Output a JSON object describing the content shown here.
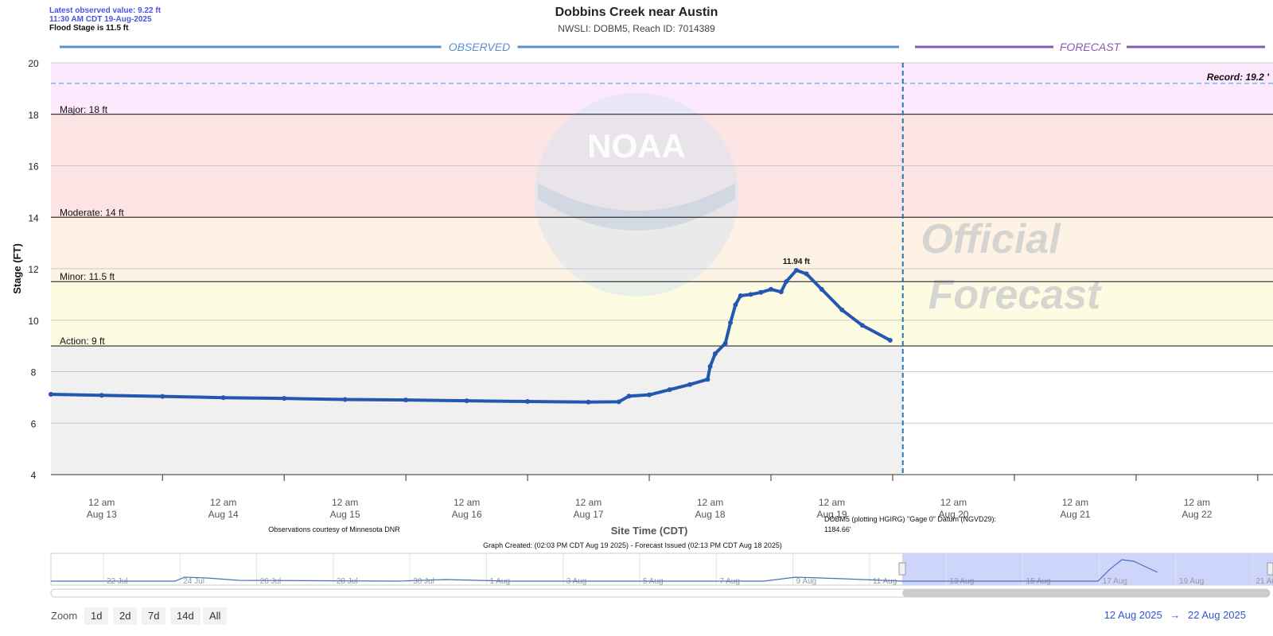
{
  "info": {
    "latest_value": "Latest observed value: 9.22 ft",
    "latest_time": "11:30 AM CDT 19-Aug-2025",
    "flood_stage": "Flood Stage is 11.5 ft"
  },
  "chart_data": {
    "type": "line",
    "title": "Dobbins Creek near Austin",
    "subtitle": "NWSLI: DOBM5, Reach ID: 7014389",
    "ylabel": "Stage (FT)",
    "xlabel": "Site Time (CDT)",
    "ylim": [
      4,
      20
    ],
    "yticks": [
      "4",
      "6",
      "8",
      "10",
      "12",
      "14",
      "16",
      "18",
      "20"
    ],
    "xlim": [
      "2025-08-12T14:00",
      "2025-08-22T15:00"
    ],
    "xticks": [
      {
        "t": "2025-08-13T00:00",
        "line1": "12 am",
        "line2": "Aug 13"
      },
      {
        "t": "2025-08-14T00:00",
        "line1": "12 am",
        "line2": "Aug 14"
      },
      {
        "t": "2025-08-15T00:00",
        "line1": "12 am",
        "line2": "Aug 15"
      },
      {
        "t": "2025-08-16T00:00",
        "line1": "12 am",
        "line2": "Aug 16"
      },
      {
        "t": "2025-08-17T00:00",
        "line1": "12 am",
        "line2": "Aug 17"
      },
      {
        "t": "2025-08-18T00:00",
        "line1": "12 am",
        "line2": "Aug 18"
      },
      {
        "t": "2025-08-19T00:00",
        "line1": "12 am",
        "line2": "Aug 19"
      },
      {
        "t": "2025-08-20T00:00",
        "line1": "12 am",
        "line2": "Aug 20"
      },
      {
        "t": "2025-08-21T00:00",
        "line1": "12 am",
        "line2": "Aug 21"
      },
      {
        "t": "2025-08-22T00:00",
        "line1": "12 am",
        "line2": "Aug 22"
      }
    ],
    "sections": {
      "observed": "OBSERVED",
      "forecast": "FORECAST",
      "forecast_start": "2025-08-19T14:00"
    },
    "watermark": {
      "line1": "Official",
      "line2": "Forecast",
      "noaa": "NOAA"
    },
    "thresholds": [
      {
        "name": "Major: 18 ft",
        "value": 18,
        "color": "#fde8fd"
      },
      {
        "name": "Moderate: 14 ft",
        "value": 14,
        "color": "#fde4e4"
      },
      {
        "name": "Minor: 11.5 ft",
        "value": 11.5,
        "color": "#fdf2e3"
      },
      {
        "name": "Action: 9 ft",
        "value": 9,
        "color": "#fdfce3"
      }
    ],
    "record": {
      "label": "Record: 19.2 '",
      "value": 19.2
    },
    "peak": {
      "label": "11.94 ft",
      "t": "2025-08-18T17:00",
      "value": 11.94
    },
    "series": [
      {
        "name": "Observed",
        "color": "#2458b0",
        "points": [
          {
            "t": "2025-08-12T14:00",
            "v": 7.12
          },
          {
            "t": "2025-08-13T00:00",
            "v": 7.08
          },
          {
            "t": "2025-08-13T12:00",
            "v": 7.04
          },
          {
            "t": "2025-08-14T00:00",
            "v": 6.99
          },
          {
            "t": "2025-08-14T12:00",
            "v": 6.96
          },
          {
            "t": "2025-08-15T00:00",
            "v": 6.92
          },
          {
            "t": "2025-08-15T12:00",
            "v": 6.9
          },
          {
            "t": "2025-08-16T00:00",
            "v": 6.87
          },
          {
            "t": "2025-08-16T12:00",
            "v": 6.84
          },
          {
            "t": "2025-08-17T00:00",
            "v": 6.82
          },
          {
            "t": "2025-08-17T06:00",
            "v": 6.83
          },
          {
            "t": "2025-08-17T08:00",
            "v": 7.05
          },
          {
            "t": "2025-08-17T12:00",
            "v": 7.1
          },
          {
            "t": "2025-08-17T16:00",
            "v": 7.3
          },
          {
            "t": "2025-08-17T20:00",
            "v": 7.5
          },
          {
            "t": "2025-08-17T23:30",
            "v": 7.7
          },
          {
            "t": "2025-08-18T00:00",
            "v": 8.2
          },
          {
            "t": "2025-08-18T01:00",
            "v": 8.7
          },
          {
            "t": "2025-08-18T03:00",
            "v": 9.1
          },
          {
            "t": "2025-08-18T04:00",
            "v": 9.9
          },
          {
            "t": "2025-08-18T05:00",
            "v": 10.6
          },
          {
            "t": "2025-08-18T06:00",
            "v": 10.95
          },
          {
            "t": "2025-08-18T08:00",
            "v": 11.0
          },
          {
            "t": "2025-08-18T10:00",
            "v": 11.08
          },
          {
            "t": "2025-08-18T12:00",
            "v": 11.2
          },
          {
            "t": "2025-08-18T14:00",
            "v": 11.1
          },
          {
            "t": "2025-08-18T15:00",
            "v": 11.5
          },
          {
            "t": "2025-08-18T17:00",
            "v": 11.94
          },
          {
            "t": "2025-08-18T19:00",
            "v": 11.8
          },
          {
            "t": "2025-08-18T22:00",
            "v": 11.2
          },
          {
            "t": "2025-08-19T02:00",
            "v": 10.4
          },
          {
            "t": "2025-08-19T06:00",
            "v": 9.8
          },
          {
            "t": "2025-08-19T11:30",
            "v": 9.22
          }
        ]
      }
    ],
    "credit": "Observations courtesy of Minnesota DNR",
    "datum_line1": "DOBM5 (plotting HGIRG) \"Gage 0\" Datum (NGVD29):",
    "datum_line2": "1184.66'",
    "created": "Graph Created: (02:03 PM CDT Aug 19 2025) - Forecast Issued (02:13 PM CDT Aug 18 2025)",
    "navigator": {
      "labels": [
        "22 Jul",
        "24 Jul",
        "26 Jul",
        "28 Jul",
        "30 Jul",
        "1 Aug",
        "3 Aug",
        "5 Aug",
        "7 Aug",
        "9 Aug",
        "11 Aug",
        "13 Aug",
        "15 Aug",
        "17 Aug",
        "19 Aug",
        "21 Aug"
      ]
    }
  },
  "zoom": {
    "label": "Zoom",
    "buttons": [
      "1d",
      "2d",
      "7d",
      "14d",
      "All"
    ]
  },
  "range": {
    "from": "12 Aug 2025",
    "arrow": "→",
    "to": "22 Aug 2025"
  }
}
